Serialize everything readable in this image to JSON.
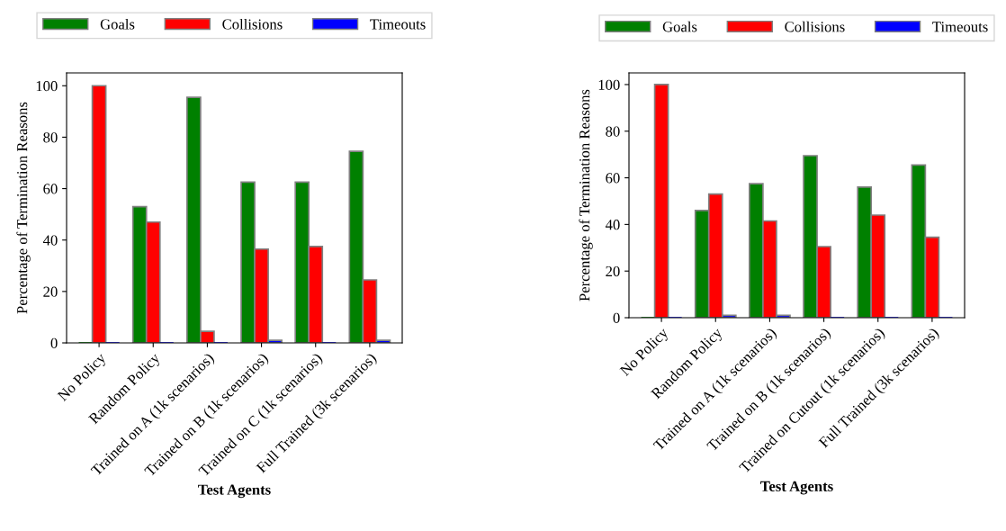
{
  "chart_data": [
    {
      "type": "bar",
      "xlabel": "Test Agents",
      "ylabel": "Percentage of Termination Reasons",
      "categories": [
        "No Policy",
        "Random Policy",
        "Trained on A (1k scenarios)",
        "Trained on B (1k scenarios)",
        "Trained on C (1k scenarios)",
        "Full Trained (3k scenarios)"
      ],
      "series": [
        {
          "name": "Goals",
          "color": "#008000",
          "values": [
            0,
            53,
            95.5,
            62.5,
            62.5,
            74.5
          ]
        },
        {
          "name": "Collisions",
          "color": "#ff0000",
          "values": [
            100,
            47,
            4.5,
            36.5,
            37.5,
            24.5
          ]
        },
        {
          "name": "Timeouts",
          "color": "#0000ff",
          "values": [
            0,
            0,
            0,
            1,
            0,
            1
          ]
        }
      ],
      "ylim": [
        0,
        105
      ],
      "yticks": [
        0,
        20,
        40,
        60,
        80,
        100
      ],
      "grid": false,
      "legend": "top"
    },
    {
      "type": "bar",
      "xlabel": "Test Agents",
      "ylabel": "Percentage of Termination Reasons",
      "categories": [
        "No Policy",
        "Random Policy",
        "Trained on A (1k scenarios)",
        "Trained on B (1k scenarios)",
        "Trained on Cutout (1k scenarios)",
        "Full Trained (3k scenarios)"
      ],
      "series": [
        {
          "name": "Goals",
          "color": "#008000",
          "values": [
            0,
            46,
            57.5,
            69.5,
            56,
            65.5
          ]
        },
        {
          "name": "Collisions",
          "color": "#ff0000",
          "values": [
            100,
            53,
            41.5,
            30.5,
            44,
            34.5
          ]
        },
        {
          "name": "Timeouts",
          "color": "#0000ff",
          "values": [
            0,
            1,
            1,
            0,
            0,
            0
          ]
        }
      ],
      "ylim": [
        0,
        105
      ],
      "yticks": [
        0,
        20,
        40,
        60,
        80,
        100
      ],
      "grid": false,
      "legend": "top"
    }
  ]
}
